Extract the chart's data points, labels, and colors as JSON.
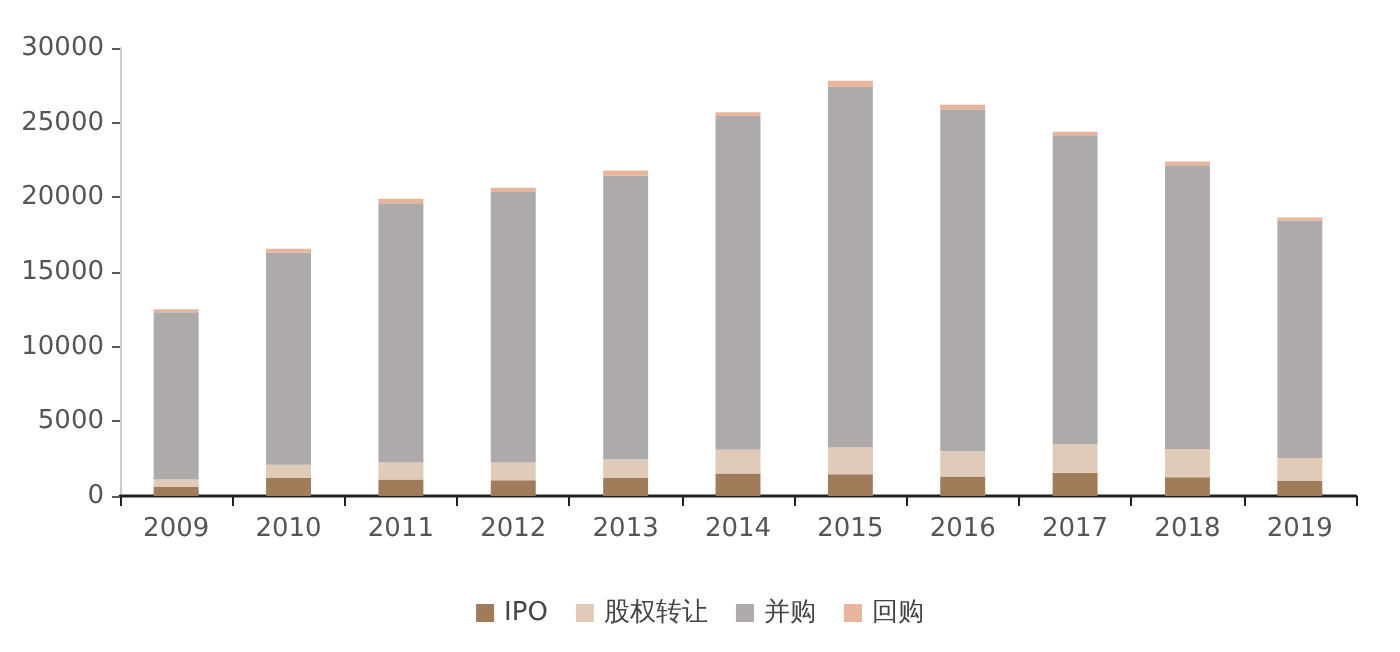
{
  "chart_data": {
    "type": "bar",
    "stacked": true,
    "categories": [
      "2009",
      "2010",
      "2011",
      "2012",
      "2013",
      "2014",
      "2015",
      "2016",
      "2017",
      "2018",
      "2019"
    ],
    "series": [
      {
        "name": "IPO",
        "color": "#a07c5a",
        "values": [
          600,
          1200,
          1100,
          1050,
          1200,
          1500,
          1450,
          1300,
          1550,
          1250,
          1000
        ]
      },
      {
        "name": "股权转让",
        "color": "#e0cbb8",
        "values": [
          500,
          900,
          1150,
          1200,
          1250,
          1600,
          1800,
          1700,
          1900,
          1900,
          1550
        ]
      },
      {
        "name": "并购",
        "color": "#aeaaaa",
        "values": [
          11200,
          14200,
          17350,
          18100,
          19000,
          22350,
          24150,
          22900,
          20700,
          19000,
          15900
        ]
      },
      {
        "name": "回购",
        "color": "#e8b49a",
        "values": [
          200,
          250,
          300,
          300,
          350,
          250,
          400,
          300,
          250,
          250,
          200
        ]
      }
    ],
    "ylim": [
      0,
      30000
    ],
    "yticks": [
      0,
      5000,
      10000,
      15000,
      20000,
      25000,
      30000
    ],
    "grid": false,
    "legend": "bottom"
  }
}
